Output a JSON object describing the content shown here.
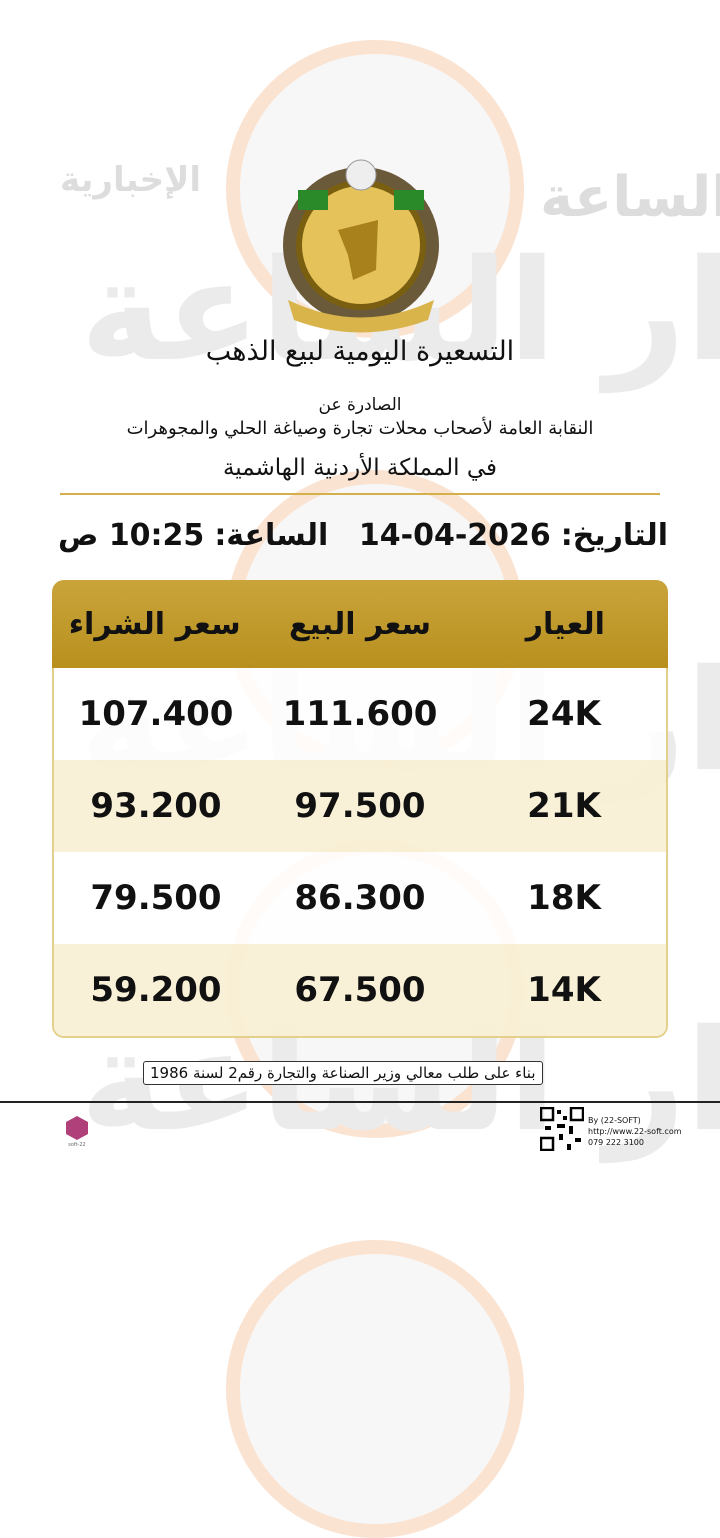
{
  "header": {
    "title": "التسعيرة اليومية لبيع الذهب",
    "issued_by": "الصادرة عن",
    "organization": "النقابة العامة لأصحاب محلات تجارة وصياغة الحلي والمجوهرات",
    "country": "في المملكة الأردنية الهاشمية"
  },
  "datetime": {
    "date_label": "التاريخ:",
    "date": "14-04-2026",
    "time_label": "الساعة:",
    "time": "10:25 ص"
  },
  "table": {
    "columns": [
      "العيار",
      "سعر البيع",
      "سعر الشراء"
    ],
    "rows": [
      [
        "24K",
        "111.600",
        "107.400"
      ],
      [
        "21K",
        "97.500",
        "93.200"
      ],
      [
        "18K",
        "86.300",
        "79.500"
      ],
      [
        "14K",
        "67.500",
        "59.200"
      ]
    ]
  },
  "footnote": "بناء على طلب معالي وزير الصناعة والتجارة رقم2 لسنة 1986",
  "watermark": {
    "brand": "مدار الساعة",
    "tag": "الإخبارية"
  },
  "footer": {
    "by": "By (22-SOFT)",
    "url": "http://www.22-soft.com",
    "phone": "079 222 3100",
    "logo_text": "22-soft"
  }
}
